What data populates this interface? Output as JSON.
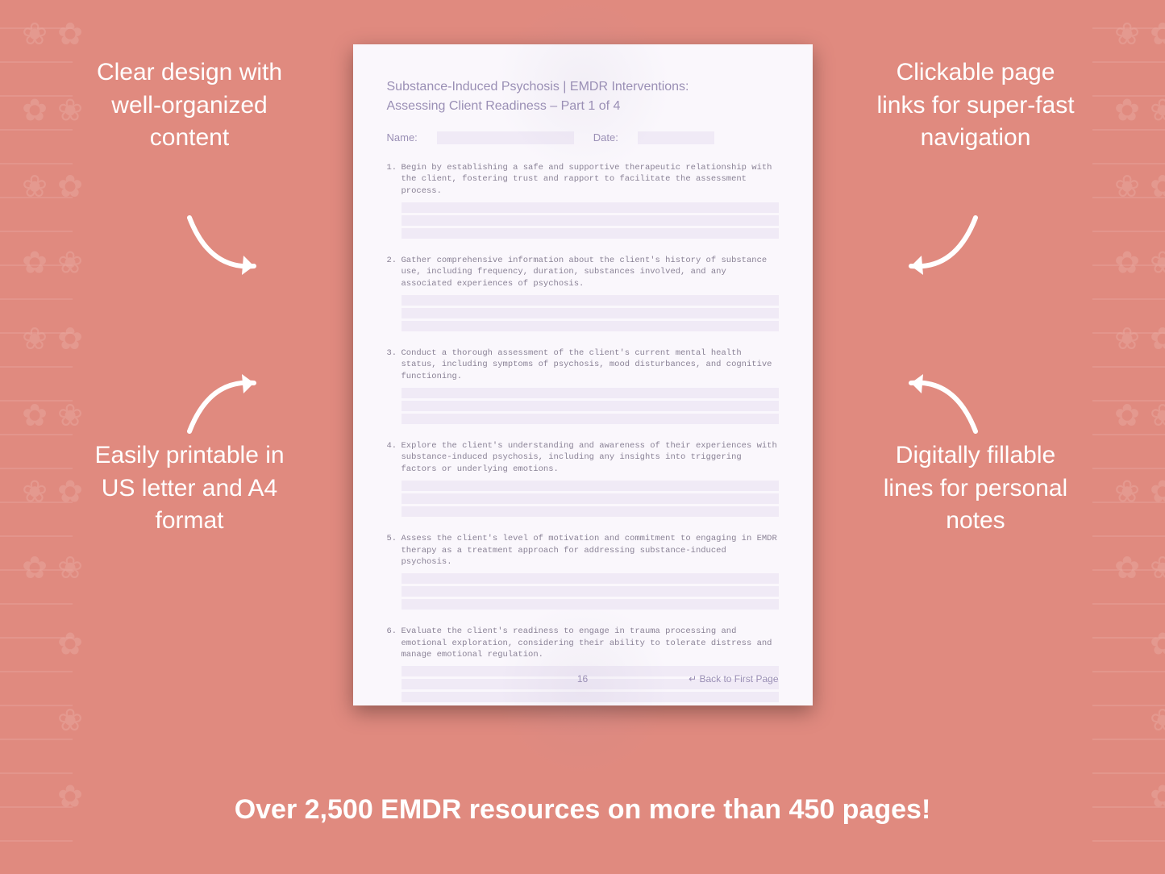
{
  "background_color": "#e08a7f",
  "callouts": {
    "top_left": "Clear design with well-organized content",
    "top_right": "Clickable page links for super-fast navigation",
    "bottom_left": "Easily printable in US letter and A4 format",
    "bottom_right": "Digitally fillable lines for personal notes"
  },
  "banner": "Over 2,500 EMDR resources on more than 450 pages!",
  "document": {
    "title_line1": "Substance-Induced Psychosis | EMDR Interventions:",
    "title_line2": "Assessing Client Readiness  – Part 1 of 4",
    "name_label": "Name:",
    "date_label": "Date:",
    "items": [
      {
        "num": "1.",
        "text": "Begin by establishing a safe and supportive therapeutic relationship with the client, fostering trust and rapport to facilitate the assessment process."
      },
      {
        "num": "2.",
        "text": "Gather comprehensive information about the client's history of substance use, including frequency, duration, substances involved, and any associated experiences of psychosis."
      },
      {
        "num": "3.",
        "text": "Conduct a thorough assessment of the client's current mental health status, including symptoms of psychosis, mood disturbances, and cognitive functioning."
      },
      {
        "num": "4.",
        "text": "Explore the client's understanding and awareness of their experiences with substance-induced psychosis, including any insights into triggering factors or underlying emotions."
      },
      {
        "num": "5.",
        "text": "Assess the client's level of motivation and commitment to engaging in EMDR therapy as a treatment approach for addressing substance-induced psychosis."
      },
      {
        "num": "6.",
        "text": "Evaluate the client's readiness to engage in trauma processing and emotional exploration, considering their ability to tolerate distress and manage emotional regulation."
      }
    ],
    "page_number": "16",
    "back_link": "↵ Back to First Page"
  },
  "style": {
    "callout_color": "#ffffff",
    "callout_fontsize": 30,
    "banner_fontsize": 34,
    "page_bg": "#faf7fc",
    "page_accent": "#f0eaf6",
    "page_text_color": "#9a8fb5",
    "mono_text_color": "#8a8296",
    "arrow_color": "#ffffff"
  }
}
